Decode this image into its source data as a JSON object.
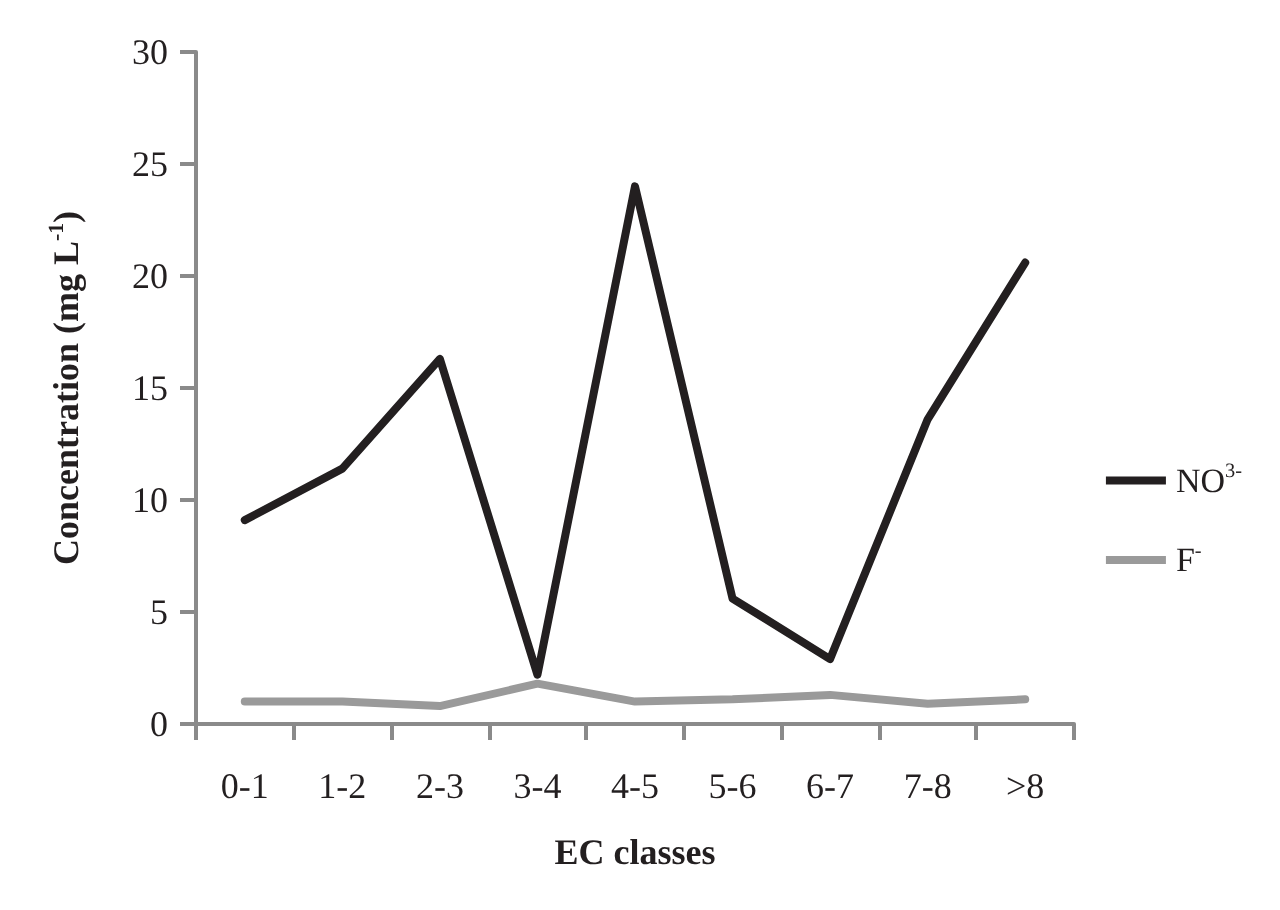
{
  "chart_data": {
    "type": "line",
    "xlabel": "EC classes",
    "ylabel": "Concentration (mg L$^{-1}$)",
    "categories": [
      "0-1",
      "1-2",
      "2-3",
      "3-4",
      "4-5",
      "5-6",
      "6-7",
      "7-8",
      ">8"
    ],
    "series": [
      {
        "name": "NO$^{3-}$",
        "color": "#231f20",
        "values": [
          9.1,
          11.4,
          16.3,
          2.2,
          24.0,
          5.6,
          2.9,
          13.6,
          20.6
        ]
      },
      {
        "name": "F$^{-}$",
        "color": "#9a9a9a",
        "values": [
          1.0,
          1.0,
          0.8,
          1.8,
          1.0,
          1.1,
          1.3,
          0.9,
          1.1
        ]
      }
    ],
    "ylim": [
      0,
      30
    ],
    "yticks": [
      0,
      5,
      10,
      15,
      20,
      25,
      30
    ],
    "grid": false,
    "legend": "right",
    "marker": "none",
    "line_style": "solid"
  }
}
